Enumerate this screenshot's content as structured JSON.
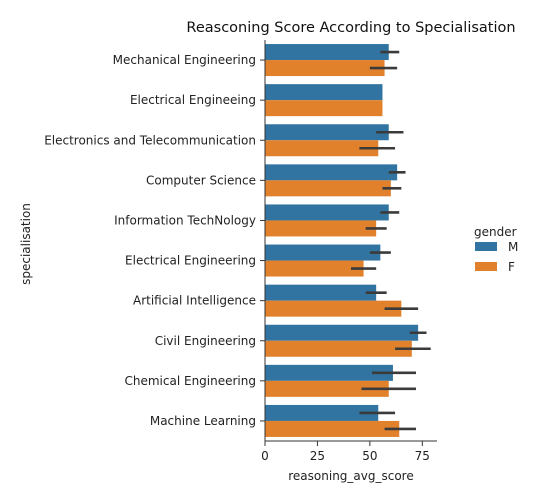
{
  "chart_data": {
    "type": "bar",
    "orientation": "horizontal",
    "title": "Reasconing Score According to Specialisation",
    "xlabel": "reasoning_avg_score",
    "ylabel": "specialisation",
    "xlim": [
      0,
      82
    ],
    "xticks": [
      0,
      25,
      50,
      75
    ],
    "grid": false,
    "legend": {
      "title": "gender",
      "placement": "right"
    },
    "categories": [
      "Mechanical Engineering",
      "Electrical Engineeing",
      "Electronics and Telecommunication",
      "Computer Science",
      "Information TechNology",
      "Electrical Engineering",
      "Artificial Intelligence",
      "Civil Engineering",
      "Chemical Engineering",
      "Machine Learning"
    ],
    "series": [
      {
        "name": "M",
        "color": "#3274a1",
        "values": [
          59,
          56,
          59,
          63,
          59,
          55,
          53,
          73,
          61,
          54
        ],
        "ci_low": [
          55,
          56,
          53,
          59,
          55,
          50,
          48,
          69,
          51,
          45
        ],
        "ci_high": [
          64,
          56,
          66,
          67,
          64,
          60,
          58,
          77,
          72,
          62
        ]
      },
      {
        "name": "F",
        "color": "#e1812c",
        "values": [
          57,
          56,
          54,
          60,
          53,
          47,
          65,
          70,
          59,
          64
        ],
        "ci_low": [
          50,
          56,
          45,
          56,
          48,
          41,
          57,
          62,
          46,
          57
        ],
        "ci_high": [
          63,
          56,
          62,
          65,
          58,
          53,
          73,
          79,
          72,
          72
        ]
      }
    ],
    "errorbar_color": "#3b3b3b"
  }
}
